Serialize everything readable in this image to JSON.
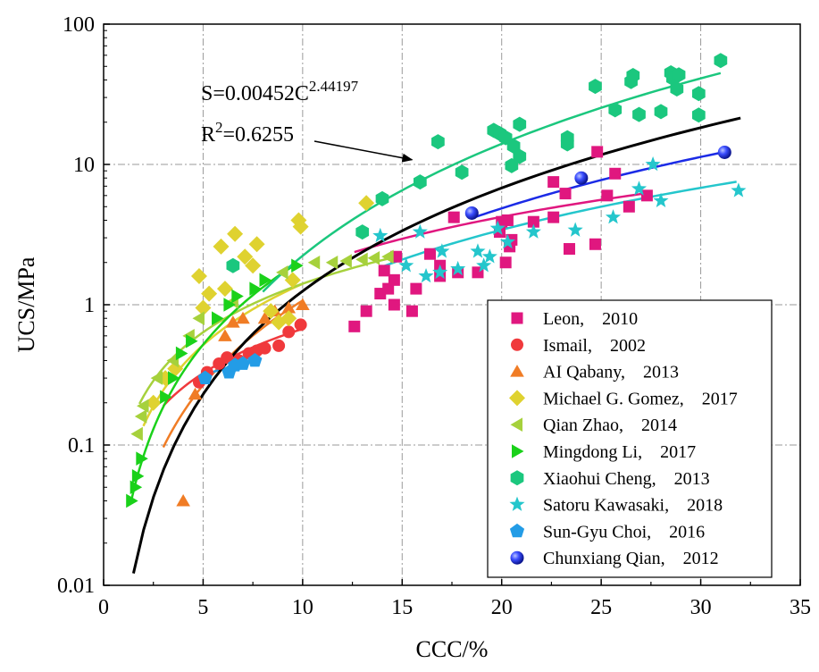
{
  "chart_data": {
    "type": "scatter",
    "xlabel": "CCC/%",
    "ylabel": "UCS/MPa",
    "xlim": [
      0,
      35
    ],
    "ylim": [
      0.01,
      100
    ],
    "yscale": "log",
    "x_ticks": [
      "0",
      "5",
      "10",
      "15",
      "20",
      "25",
      "30",
      "35"
    ],
    "y_ticks": [
      "0.01",
      "0.1",
      "1",
      "10",
      "100"
    ],
    "grid": "dash-dot",
    "legend_position": "bottom-right",
    "annotation": {
      "equation_prefix": "S=0.00452C",
      "equation_exponent": "2.44197",
      "r2_prefix": "R",
      "r2_exp": "2",
      "r2_value": "=0.6255",
      "arrow_target": [
        15.5,
        10.8
      ]
    },
    "overall_fit": {
      "a": 0.00452,
      "b": 2.44197,
      "x_range": [
        1.5,
        32
      ],
      "color": "#000000"
    },
    "series": [
      {
        "name": "Leon,　2010",
        "marker": "square",
        "color": "#E0177F",
        "points": [
          [
            12.6,
            0.7
          ],
          [
            13.2,
            0.9
          ],
          [
            13.9,
            1.2
          ],
          [
            14.1,
            1.75
          ],
          [
            14.3,
            1.3
          ],
          [
            14.6,
            1.5
          ],
          [
            14.7,
            2.2
          ],
          [
            14.6,
            1.0
          ],
          [
            15.5,
            0.9
          ],
          [
            15.7,
            1.3
          ],
          [
            16.4,
            2.3
          ],
          [
            16.9,
            1.6
          ],
          [
            16.9,
            1.9
          ],
          [
            17.6,
            4.2
          ],
          [
            17.8,
            1.7
          ],
          [
            18.8,
            1.7
          ],
          [
            19.9,
            3.3
          ],
          [
            20.0,
            3.9
          ],
          [
            20.3,
            4.0
          ],
          [
            20.2,
            2.0
          ],
          [
            20.5,
            2.9
          ],
          [
            20.4,
            2.6
          ],
          [
            21.6,
            3.9
          ],
          [
            22.6,
            4.2
          ],
          [
            22.6,
            7.5
          ],
          [
            23.2,
            6.2
          ],
          [
            23.4,
            2.5
          ],
          [
            24.7,
            2.7
          ],
          [
            24.8,
            12.3
          ],
          [
            25.3,
            6.0
          ],
          [
            25.7,
            8.6
          ],
          [
            26.4,
            5.0
          ],
          [
            27.3,
            6.0
          ]
        ],
        "fit": {
          "a": 0.1,
          "b": 1.25,
          "x_range": [
            12.6,
            27.3
          ]
        }
      },
      {
        "name": "Ismail,　2002",
        "marker": "circle",
        "color": "#F0393C",
        "points": [
          [
            4.8,
            0.28
          ],
          [
            5.2,
            0.33
          ],
          [
            5.8,
            0.38
          ],
          [
            6.2,
            0.42
          ],
          [
            6.8,
            0.4
          ],
          [
            7.3,
            0.45
          ],
          [
            7.7,
            0.47
          ],
          [
            8.1,
            0.49
          ],
          [
            8.8,
            0.51
          ],
          [
            9.3,
            0.64
          ],
          [
            9.9,
            0.72
          ]
        ],
        "fit": {
          "a": 0.06,
          "b": 1.05,
          "x_range": [
            3.0,
            10.0
          ]
        }
      },
      {
        "name": "AI Qabany,　2013",
        "marker": "triangle",
        "color": "#F07C25",
        "points": [
          [
            4.0,
            0.04
          ],
          [
            4.6,
            0.23
          ],
          [
            6.1,
            0.6
          ],
          [
            6.5,
            0.75
          ],
          [
            7.0,
            0.8
          ],
          [
            8.1,
            0.8
          ],
          [
            8.6,
            0.9
          ],
          [
            9.3,
            0.95
          ],
          [
            10.0,
            1.0
          ]
        ],
        "fit": {
          "a": 0.0107,
          "b": 2.0,
          "x_range": [
            3.0,
            10.0
          ]
        }
      },
      {
        "name": "Michael G. Gomez,　2017",
        "marker": "diamond",
        "color": "#DFD230",
        "points": [
          [
            2.5,
            0.2
          ],
          [
            3.1,
            0.3
          ],
          [
            3.6,
            0.35
          ],
          [
            4.8,
            1.6
          ],
          [
            5.0,
            0.95
          ],
          [
            5.3,
            1.2
          ],
          [
            5.9,
            2.6
          ],
          [
            6.1,
            1.3
          ],
          [
            6.6,
            3.2
          ],
          [
            7.1,
            2.2
          ],
          [
            7.7,
            2.7
          ],
          [
            7.5,
            1.9
          ],
          [
            8.4,
            0.9
          ],
          [
            8.8,
            0.75
          ],
          [
            9.3,
            0.8
          ],
          [
            9.5,
            1.5
          ],
          [
            9.8,
            4.0
          ],
          [
            9.9,
            3.6
          ],
          [
            13.2,
            5.3
          ]
        ],
        "fit": {
          "a": 0.05,
          "b": 1.45,
          "x_range": [
            2.0,
            10.0
          ]
        }
      },
      {
        "name": "Qian Zhao,　2014",
        "marker": "triangle-left",
        "color": "#A6D13C",
        "points": [
          [
            1.7,
            0.12
          ],
          [
            1.9,
            0.16
          ],
          [
            2.0,
            0.19
          ],
          [
            2.7,
            0.3
          ],
          [
            3.5,
            0.4
          ],
          [
            4.3,
            0.6
          ],
          [
            4.8,
            0.8
          ],
          [
            6.5,
            1.05
          ],
          [
            9.0,
            1.7
          ],
          [
            10.6,
            2.0
          ],
          [
            11.5,
            2.0
          ],
          [
            12.2,
            2.05
          ],
          [
            13.0,
            2.1
          ],
          [
            13.6,
            2.15
          ],
          [
            14.3,
            2.2
          ]
        ],
        "fit": {
          "a": 0.1,
          "b": 1.15,
          "x_range": [
            1.8,
            14.6
          ]
        }
      },
      {
        "name": "Mingdong Li,　2017",
        "marker": "triangle-right",
        "color": "#1AD11A",
        "points": [
          [
            1.4,
            0.04
          ],
          [
            1.6,
            0.05
          ],
          [
            1.7,
            0.06
          ],
          [
            1.9,
            0.08
          ],
          [
            3.1,
            0.22
          ],
          [
            3.5,
            0.3
          ],
          [
            3.9,
            0.45
          ],
          [
            4.4,
            0.55
          ],
          [
            5.7,
            0.8
          ],
          [
            6.3,
            1.0
          ],
          [
            6.7,
            1.15
          ],
          [
            7.6,
            1.3
          ],
          [
            8.1,
            1.5
          ],
          [
            9.7,
            1.9
          ]
        ],
        "fit": {
          "a": 0.0208,
          "b": 2.0,
          "x_range": [
            1.4,
            9.6
          ]
        }
      },
      {
        "name": "Xiaohui Cheng,　2013",
        "marker": "hexagon",
        "color": "#1BC77E",
        "points": [
          [
            6.5,
            1.9
          ],
          [
            13.0,
            3.3
          ],
          [
            14.0,
            5.7
          ],
          [
            15.9,
            7.5
          ],
          [
            16.8,
            14.5
          ],
          [
            18.0,
            8.8
          ],
          [
            19.6,
            17.5
          ],
          [
            19.9,
            16.6
          ],
          [
            20.2,
            15.5
          ],
          [
            20.6,
            13.5
          ],
          [
            20.5,
            9.8
          ],
          [
            20.9,
            11.4
          ],
          [
            20.9,
            19.3
          ],
          [
            23.3,
            14.0
          ],
          [
            23.3,
            15.5
          ],
          [
            24.7,
            36.0
          ],
          [
            25.7,
            24.5
          ],
          [
            26.5,
            39.0
          ],
          [
            26.6,
            43.0
          ],
          [
            26.9,
            22.7
          ],
          [
            28.0,
            23.8
          ],
          [
            28.5,
            45.0
          ],
          [
            28.6,
            41.0
          ],
          [
            28.9,
            43.5
          ],
          [
            28.8,
            34.5
          ],
          [
            29.9,
            32.0
          ],
          [
            29.9,
            22.5
          ],
          [
            31.0,
            55.0
          ]
        ],
        "fit": {
          "a": 0.005,
          "b": 2.65,
          "x_range": [
            8.0,
            31.0
          ]
        }
      },
      {
        "name": "Satoru Kawasaki,　2018",
        "marker": "star",
        "color": "#24C6CC",
        "points": [
          [
            13.9,
            3.1
          ],
          [
            15.2,
            1.9
          ],
          [
            15.9,
            3.3
          ],
          [
            16.2,
            1.6
          ],
          [
            16.9,
            1.7
          ],
          [
            17.0,
            2.4
          ],
          [
            17.8,
            1.8
          ],
          [
            18.8,
            2.4
          ],
          [
            19.1,
            1.9
          ],
          [
            19.4,
            2.2
          ],
          [
            19.8,
            3.5
          ],
          [
            20.3,
            2.8
          ],
          [
            21.6,
            3.3
          ],
          [
            23.7,
            3.4
          ],
          [
            25.6,
            4.2
          ],
          [
            26.9,
            6.7
          ],
          [
            27.6,
            10.0
          ],
          [
            28.0,
            5.5
          ],
          [
            31.9,
            6.5
          ]
        ],
        "fit": {
          "a": 0.021,
          "b": 1.7,
          "x_range": [
            14.0,
            31.8
          ]
        }
      },
      {
        "name": "Sun-Gyu Choi,　2016",
        "marker": "pentagon",
        "color": "#239CE6",
        "points": [
          [
            5.1,
            0.3
          ],
          [
            6.3,
            0.33
          ],
          [
            6.6,
            0.37
          ],
          [
            7.0,
            0.38
          ],
          [
            7.6,
            0.4
          ]
        ],
        "fit": {
          "a": 0.13,
          "b": 0.55,
          "x_range": [
            5.0,
            7.7
          ]
        }
      },
      {
        "name": "Chunxiang Qian,　2012",
        "marker": "sphere",
        "color": "#1B2BE6",
        "points": [
          [
            18.5,
            4.5
          ],
          [
            24.0,
            8.0
          ],
          [
            31.2,
            12.2
          ]
        ],
        "fit": {
          "a": 0.00957,
          "b": 2.08,
          "x_range": [
            18.5,
            31.2
          ]
        }
      }
    ]
  }
}
